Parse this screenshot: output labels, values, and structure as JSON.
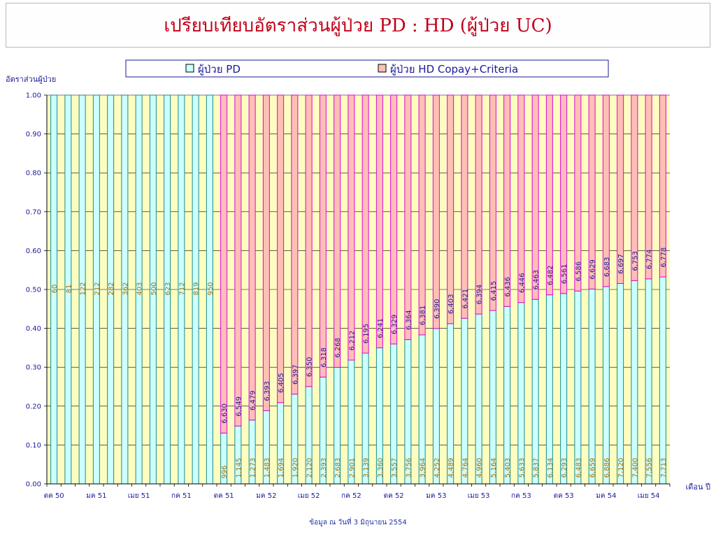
{
  "title": "เปรียบเทียบอัตราส่วนผู้ป่วย PD : HD (ผู้ป่วย UC)",
  "footer": "ข้อมูล ณ วันที่ 3 มิถุนายน 2554",
  "colors": {
    "pd_fill": "#ccffff",
    "pd_stroke": "#1c8a8a",
    "hd_fill": "#ffbfb5",
    "hd_stroke": "#e000e0",
    "plot_bg": "#fdfdc0",
    "grid": "#000000",
    "title": "#c0001a",
    "label_pd": "#b07000",
    "label_hd": "#1a1a9a",
    "axis_text": "#1a1a9a"
  },
  "chart_data": {
    "type": "bar",
    "stacked": true,
    "normalized": true,
    "ylabel": "อัตราส่วนผู้ป่วย",
    "xlabel": "เดือน ปี",
    "ylim": [
      0,
      1
    ],
    "yticks": [
      "0.00",
      "0.10",
      "0.20",
      "0.30",
      "0.40",
      "0.50",
      "0.60",
      "0.70",
      "0.80",
      "0.90",
      "1.00"
    ],
    "xtick_labels": [
      "ตค 50",
      "มค 51",
      "เมย 51",
      "กค 51",
      "ตค 51",
      "มค 52",
      "เมย 52",
      "กค 52",
      "ตค 52",
      "มค 53",
      "เมย 53",
      "กค 53",
      "ตค 53",
      "มค 54",
      "เมย 54"
    ],
    "legend_position": "top",
    "series": [
      {
        "name": "ผู้ป่วย PD",
        "values": [
          60,
          81,
          122,
          212,
          282,
          362,
          403,
          500,
          623,
          712,
          819,
          950,
          996,
          1145,
          1273,
          1483,
          1694,
          1920,
          2120,
          2393,
          2683,
          2901,
          3139,
          3360,
          3557,
          3756,
          3964,
          4252,
          4489,
          4764,
          4960,
          5164,
          5403,
          5633,
          5837,
          6134,
          6293,
          6483,
          6659,
          6886,
          7120,
          7400,
          7556,
          7713
        ],
        "labels": [
          "60",
          "81",
          "122",
          "212",
          "282",
          "362",
          "403",
          "500",
          "623",
          "712",
          "819",
          "950",
          "996",
          "1,145",
          "1,273",
          "1,483",
          "1,694",
          "1,920",
          "2,120",
          "2,393",
          "2,683",
          "2,901",
          "3,139",
          "3,360",
          "3,557",
          "3,756",
          "3,964",
          "4,252",
          "4,489",
          "4,764",
          "4,960",
          "5,164",
          "5,403",
          "5,633",
          "5,837",
          "6,134",
          "6,293",
          "6,483",
          "6,659",
          "6,886",
          "7,120",
          "7,400",
          "7,556",
          "7,713"
        ]
      },
      {
        "name": "ผู้ป่วย HD Copay+Criteria",
        "values": [
          0,
          0,
          0,
          0,
          0,
          0,
          0,
          0,
          0,
          0,
          0,
          0,
          6630,
          6549,
          6479,
          6393,
          6405,
          6397,
          6350,
          6318,
          6268,
          6212,
          6195,
          6241,
          6329,
          6364,
          6381,
          6390,
          6403,
          6421,
          6394,
          6415,
          6436,
          6446,
          6463,
          6482,
          6561,
          6586,
          6629,
          6683,
          6697,
          6753,
          6774,
          6778
        ],
        "labels": [
          "",
          "",
          "",
          "",
          "",
          "",
          "",
          "",
          "",
          "",
          "",
          "",
          "6,630",
          "6,549",
          "6,479",
          "6,393",
          "6,405",
          "6,397",
          "6,350",
          "6,318",
          "6,268",
          "6,212",
          "6,195",
          "6,241",
          "6,329",
          "6,364",
          "6,381",
          "6,390",
          "6,403",
          "6,421",
          "6,394",
          "6,415",
          "6,436",
          "6,446",
          "6,463",
          "6,482",
          "6,561",
          "6,586",
          "6,629",
          "6,683",
          "6,697",
          "6,753",
          "6,774",
          "6,778"
        ]
      }
    ]
  }
}
